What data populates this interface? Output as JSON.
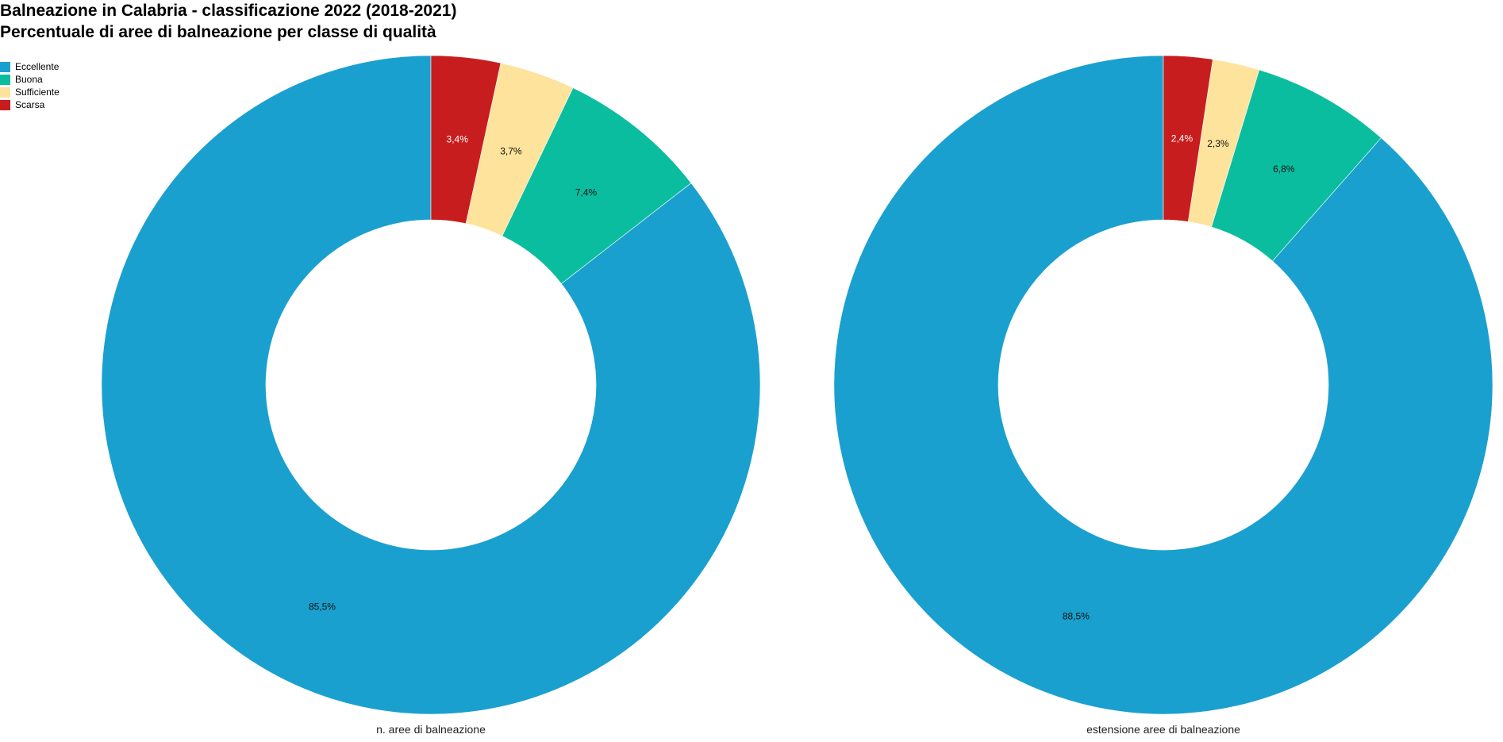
{
  "header": {
    "title": "Balneazione in Calabria - classificazione 2022 (2018-2021)",
    "subtitle": "Percentuale di aree di balneazione per classe di qualità"
  },
  "legend": {
    "placement": "top-left",
    "items": [
      {
        "label": "Eccellente",
        "color": "#1aa0cf"
      },
      {
        "label": "Buona",
        "color": "#0bbd9f"
      },
      {
        "label": "Sufficiente",
        "color": "#fde39c"
      },
      {
        "label": "Scarsa",
        "color": "#c81d1e"
      }
    ]
  },
  "chart_data": [
    {
      "type": "pie",
      "donut": true,
      "caption": "n. aree di balneazione",
      "categories": [
        "Eccellente",
        "Buona",
        "Sufficiente",
        "Scarsa"
      ],
      "values": [
        85.5,
        7.4,
        3.7,
        3.4
      ],
      "labels": [
        "85,5%",
        "7,4%",
        "3,7%",
        "3,4%"
      ],
      "colors": [
        "#1aa0cf",
        "#0bbd9f",
        "#fde39c",
        "#c81d1e"
      ]
    },
    {
      "type": "pie",
      "donut": true,
      "caption": "estensione aree di balneazione",
      "categories": [
        "Eccellente",
        "Buona",
        "Sufficiente",
        "Scarsa"
      ],
      "values": [
        88.5,
        6.8,
        2.3,
        2.4
      ],
      "labels": [
        "88,5%",
        "6,8%",
        "2,3%",
        "2,4%"
      ],
      "colors": [
        "#1aa0cf",
        "#0bbd9f",
        "#fde39c",
        "#c81d1e"
      ]
    }
  ]
}
